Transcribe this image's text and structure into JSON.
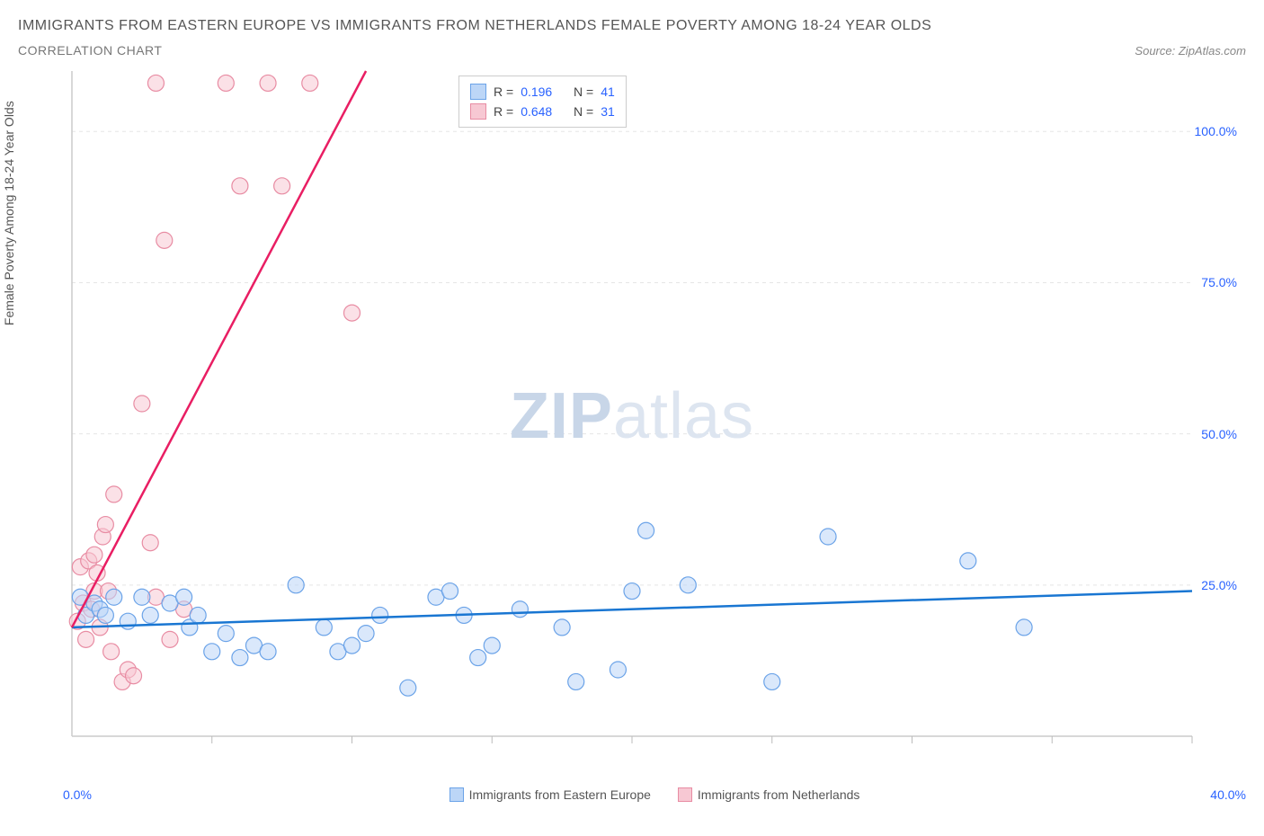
{
  "title": "IMMIGRANTS FROM EASTERN EUROPE VS IMMIGRANTS FROM NETHERLANDS FEMALE POVERTY AMONG 18-24 YEAR OLDS",
  "subtitle": "CORRELATION CHART",
  "source_label": "Source:",
  "source_name": "ZipAtlas.com",
  "y_axis_label": "Female Poverty Among 18-24 Year Olds",
  "watermark_a": "ZIP",
  "watermark_b": "atlas",
  "chart": {
    "type": "scatter",
    "background_color": "#ffffff",
    "grid_color": "#e5e5e5",
    "axis_color": "#cccccc",
    "tick_color": "#bbbbbb",
    "xlim": [
      0,
      40
    ],
    "ylim": [
      0,
      110
    ],
    "x_ticks_minor": [
      5,
      10,
      15,
      20,
      25,
      30,
      35,
      40
    ],
    "x_tick_labels": {
      "left": "0.0%",
      "right": "40.0%"
    },
    "y_ticks": [
      25,
      50,
      75,
      100
    ],
    "y_tick_labels": [
      "25.0%",
      "50.0%",
      "75.0%",
      "100.0%"
    ],
    "series": [
      {
        "name": "Immigrants from Eastern Europe",
        "color_fill": "#bcd6f7",
        "color_stroke": "#6ba3e8",
        "line_color": "#1976d2",
        "line_width": 2.5,
        "marker_radius": 9,
        "marker_opacity": 0.55,
        "R": "0.196",
        "N": "41",
        "trend": {
          "x1": 0,
          "y1": 18,
          "x2": 40,
          "y2": 24
        },
        "points": [
          [
            0.3,
            23
          ],
          [
            0.5,
            20
          ],
          [
            0.8,
            22
          ],
          [
            1.0,
            21
          ],
          [
            1.2,
            20
          ],
          [
            1.5,
            23
          ],
          [
            2.0,
            19
          ],
          [
            2.5,
            23
          ],
          [
            2.8,
            20
          ],
          [
            3.5,
            22
          ],
          [
            4.0,
            23
          ],
          [
            4.2,
            18
          ],
          [
            4.5,
            20
          ],
          [
            5.0,
            14
          ],
          [
            5.5,
            17
          ],
          [
            6.0,
            13
          ],
          [
            6.5,
            15
          ],
          [
            7.0,
            14
          ],
          [
            8.0,
            25
          ],
          [
            9.0,
            18
          ],
          [
            9.5,
            14
          ],
          [
            10.0,
            15
          ],
          [
            10.5,
            17
          ],
          [
            11.0,
            20
          ],
          [
            12.0,
            8
          ],
          [
            13.0,
            23
          ],
          [
            13.5,
            24
          ],
          [
            14.0,
            20
          ],
          [
            14.5,
            13
          ],
          [
            15.0,
            15
          ],
          [
            16.0,
            21
          ],
          [
            17.5,
            18
          ],
          [
            18.0,
            9
          ],
          [
            19.5,
            11
          ],
          [
            20.0,
            24
          ],
          [
            20.5,
            34
          ],
          [
            22.0,
            25
          ],
          [
            25.0,
            9
          ],
          [
            27.0,
            33
          ],
          [
            32.0,
            29
          ],
          [
            34.0,
            18
          ]
        ]
      },
      {
        "name": "Immigrants from Netherlands",
        "color_fill": "#f7c8d3",
        "color_stroke": "#e88ca3",
        "line_color": "#e91e63",
        "line_width": 2.5,
        "marker_radius": 9,
        "marker_opacity": 0.55,
        "R": "0.648",
        "N": "31",
        "trend": {
          "x1": 0,
          "y1": 18,
          "x2": 10.5,
          "y2": 110
        },
        "points": [
          [
            0.2,
            19
          ],
          [
            0.3,
            28
          ],
          [
            0.4,
            22
          ],
          [
            0.5,
            16
          ],
          [
            0.6,
            29
          ],
          [
            0.7,
            21
          ],
          [
            0.8,
            24
          ],
          [
            0.8,
            30
          ],
          [
            0.9,
            27
          ],
          [
            1.0,
            18
          ],
          [
            1.1,
            33
          ],
          [
            1.2,
            35
          ],
          [
            1.3,
            24
          ],
          [
            1.4,
            14
          ],
          [
            1.5,
            40
          ],
          [
            1.8,
            9
          ],
          [
            2.0,
            11
          ],
          [
            2.2,
            10
          ],
          [
            2.5,
            55
          ],
          [
            2.8,
            32
          ],
          [
            3.0,
            23
          ],
          [
            3.3,
            82
          ],
          [
            3.5,
            16
          ],
          [
            4.0,
            21
          ],
          [
            3.0,
            108
          ],
          [
            5.5,
            108
          ],
          [
            6.0,
            91
          ],
          [
            7.0,
            108
          ],
          [
            7.5,
            91
          ],
          [
            8.5,
            108
          ],
          [
            10.0,
            70
          ]
        ]
      }
    ]
  },
  "legend_labels": {
    "series1": "Immigrants from Eastern Europe",
    "series2": "Immigrants from Netherlands"
  },
  "stats_labels": {
    "R": "R =",
    "N": "N ="
  }
}
